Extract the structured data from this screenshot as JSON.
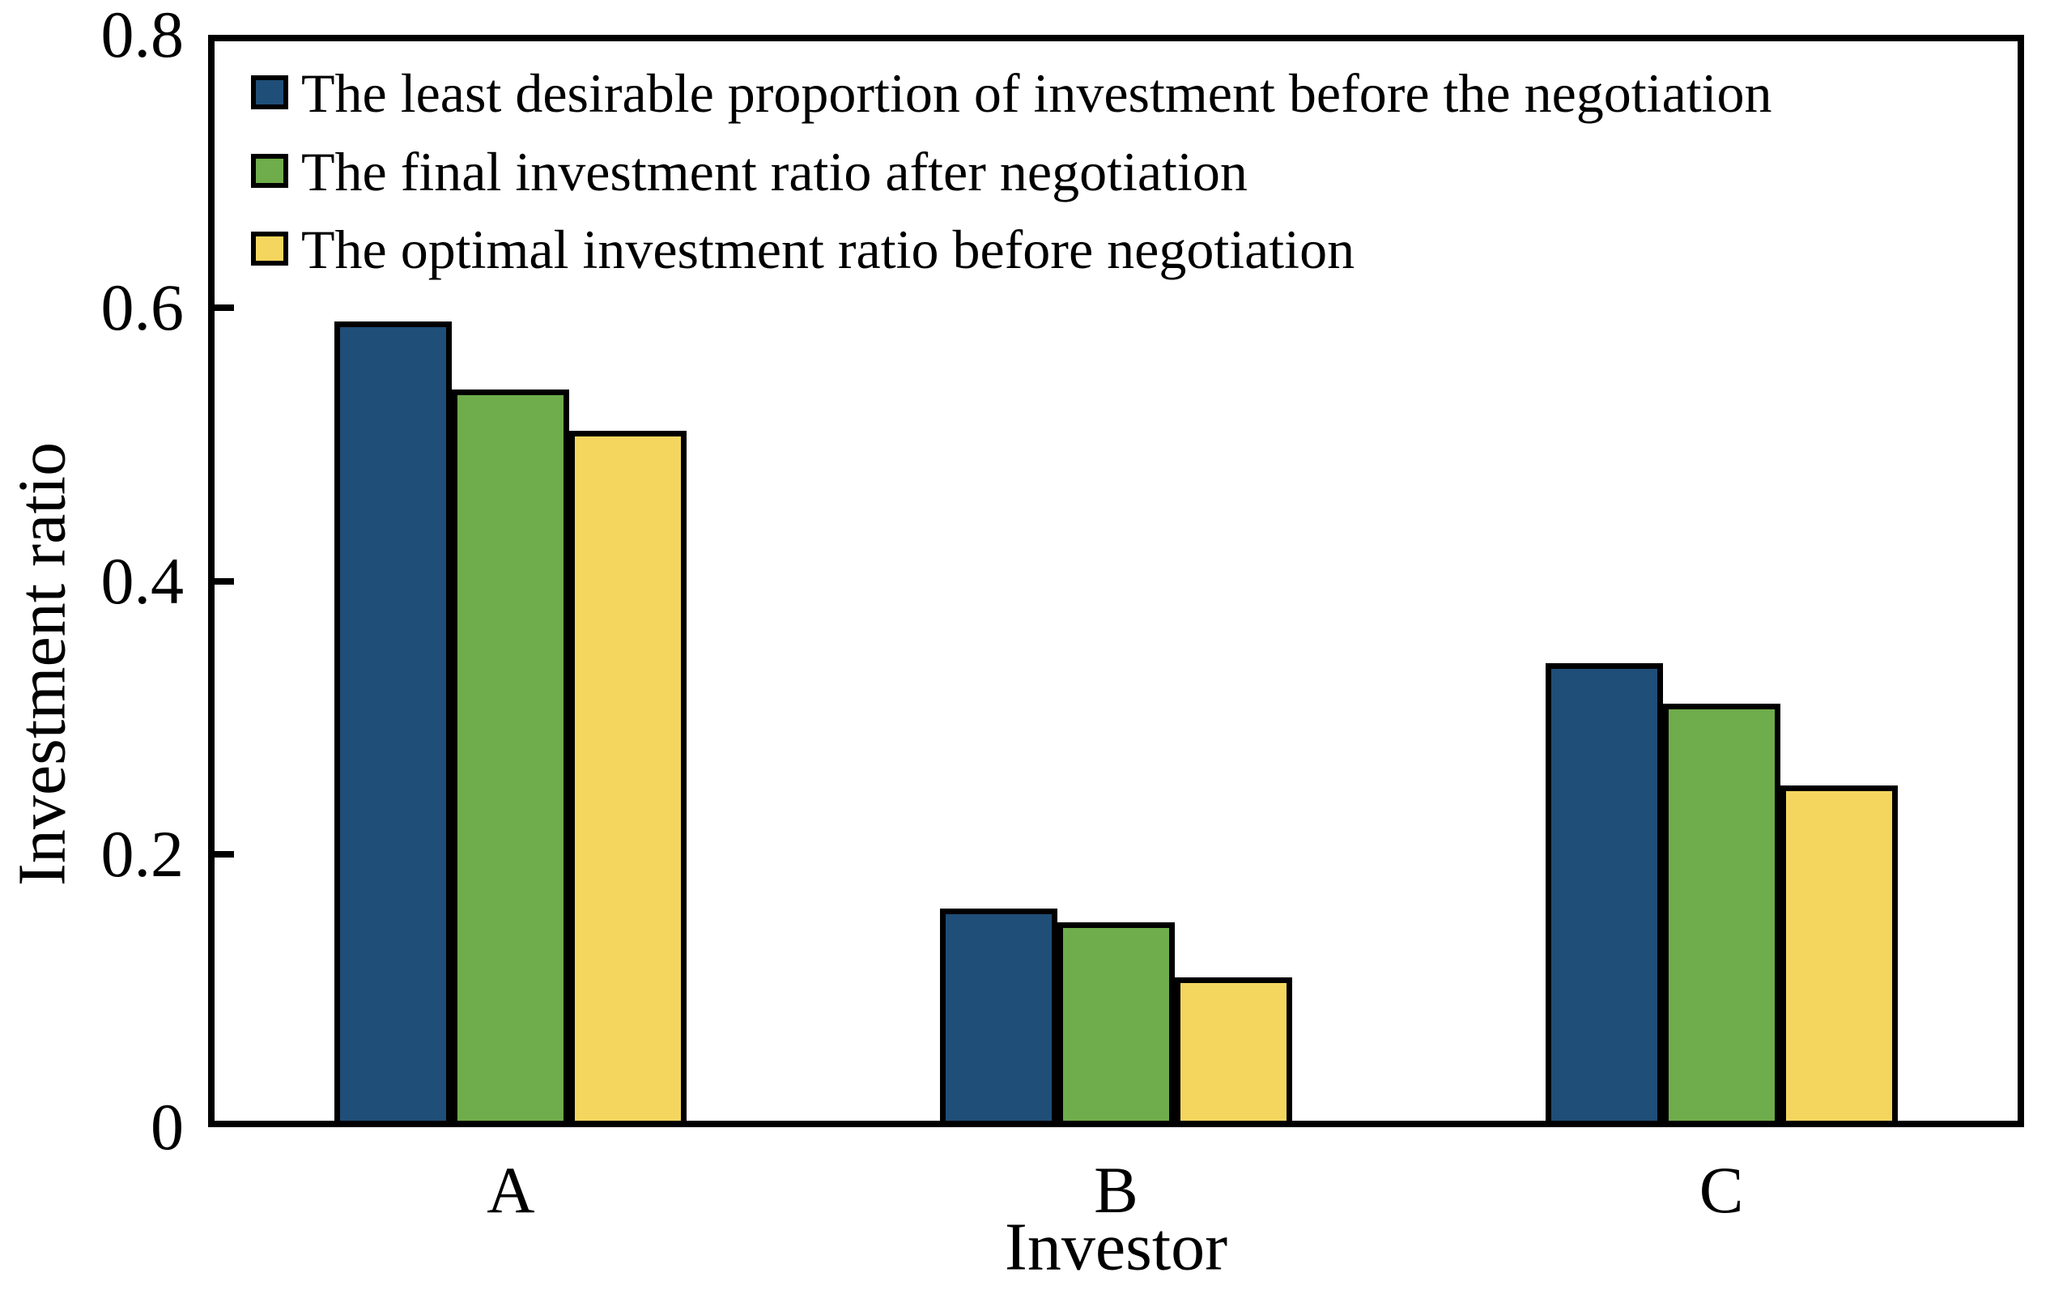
{
  "figure": {
    "background": "#FFFFFF"
  },
  "chart_data": {
    "type": "bar",
    "title": "",
    "xlabel": "Investor",
    "ylabel": "Investment ratio",
    "categories": [
      "A",
      "B",
      "C"
    ],
    "series": [
      {
        "name": "The least desirable proportion of investment before the negotiation",
        "color": "#1F4E78",
        "values": [
          0.59,
          0.16,
          0.34
        ]
      },
      {
        "name": "The final investment ratio after negotiation",
        "color": "#6FAC4B",
        "values": [
          0.54,
          0.15,
          0.31
        ]
      },
      {
        "name": "The optimal investment ratio before negotiation",
        "color": "#F4D65F",
        "values": [
          0.51,
          0.11,
          0.25
        ]
      }
    ],
    "ylim": [
      0,
      0.8
    ],
    "yticks_with_marks": [
      0.2,
      0.4,
      0.6
    ],
    "ytick_labels": [
      {
        "value": 0,
        "label": "0"
      },
      {
        "value": 0.2,
        "label": "0.2"
      },
      {
        "value": 0.4,
        "label": "0.4"
      },
      {
        "value": 0.6,
        "label": "0.6"
      },
      {
        "value": 0.8,
        "label": "0.8"
      }
    ],
    "legend_position": "upper-left-inside",
    "grid": false,
    "bar_outline_color": "#000000",
    "frame_color": "#000000"
  }
}
